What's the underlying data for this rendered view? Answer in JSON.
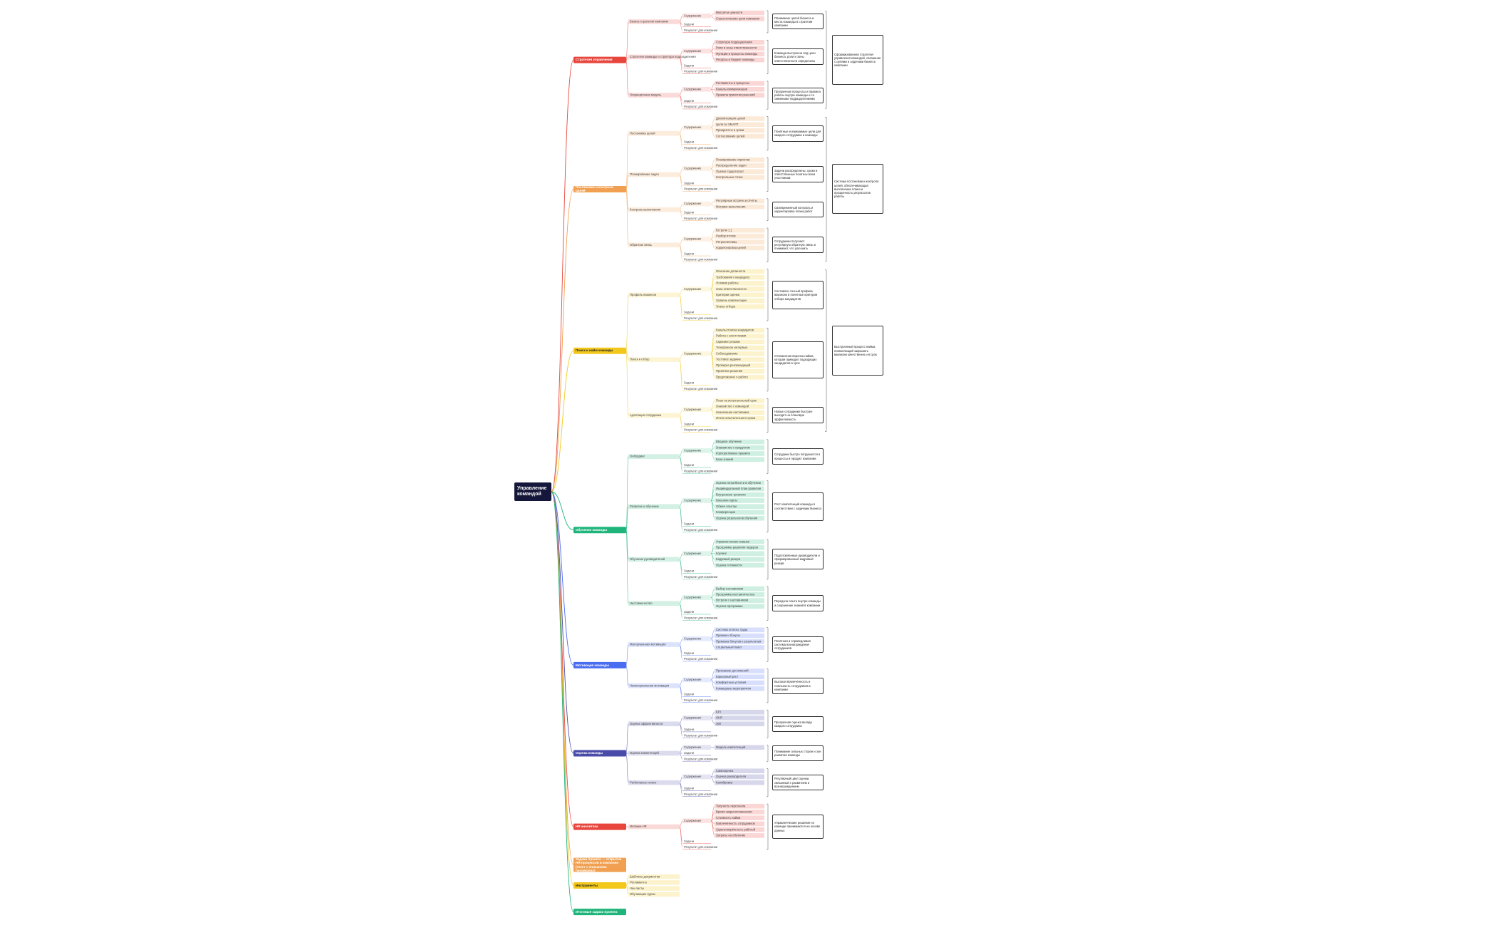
{
  "root": "Управление командой",
  "branches": [
    {
      "label": "Стратегия управления",
      "color": "#e8453c",
      "topics": [
        {
          "label": "Бизнес-стратегия компании",
          "content_label": "Содержание",
          "content": [
            "Миссия и ценности",
            "Стратегические цели компании"
          ],
          "tasks": "Задачи",
          "result": "Результат для компании",
          "note": "Понимание целей бизнеса и места команды в стратегии компании"
        },
        {
          "label": "Стратегия команды и структура подразделения",
          "content_label": "Содержание",
          "content": [
            "Структура подразделения",
            "Роли и зоны ответственности",
            "Функции и процессы команды",
            "Ресурсы и бюджет команды"
          ],
          "tasks": "Задачи",
          "result": "Результат для компании",
          "note": "Команда выстроена под цели бизнеса, роли и зоны ответственности определены"
        },
        {
          "label": "Операционная модель",
          "content_label": "Содержание",
          "content": [
            "Регламенты и процессы",
            "Каналы коммуникации",
            "Правила принятия решений"
          ],
          "tasks": "Задачи",
          "result": "Результат для компании",
          "note": "Прозрачные процессы и правила работы внутри команды и со смежными подразделениями"
        }
      ],
      "summary": "Сформированная стратегия управления командой, связанная с целями и задачами бизнеса компании"
    },
    {
      "label": "Постановка и контроль целей",
      "color": "#f0a050",
      "topics": [
        {
          "label": "Постановка целей",
          "content_label": "Содержание",
          "content": [
            "Декомпозиция целей",
            "Цели по SMART",
            "Приоритеты и сроки",
            "Согласование целей"
          ],
          "tasks": "Задачи",
          "result": "Результат для компании",
          "note": "Понятные и измеримые цели для каждого сотрудника и команды"
        },
        {
          "label": "Планирование задач",
          "content_label": "Содержание",
          "content": [
            "Планирование спринтов",
            "Распределение задач",
            "Оценка трудозатрат",
            "Контрольные точки"
          ],
          "tasks": "Задачи",
          "result": "Результат для компании",
          "note": "Задачи распределены, сроки и ответственные понятны всем участникам"
        },
        {
          "label": "Контроль выполнения",
          "content_label": "Содержание",
          "content": [
            "Регулярные встречи и отчёты",
            "Метрики выполнения"
          ],
          "tasks": "Задачи",
          "result": "Результат для компании",
          "note": "Своевременный контроль и корректировка плана работ"
        },
        {
          "label": "Обратная связь",
          "content_label": "Содержание",
          "content": [
            "Встречи 1:1",
            "Разбор итогов",
            "Ретроспективы",
            "Корректировка целей"
          ],
          "tasks": "Задачи",
          "result": "Результат для компании",
          "note": "Сотрудники получают регулярную обратную связь и понимают, что улучшить"
        }
      ],
      "summary": "Система постановки и контроля целей, обеспечивающая выполнение плана и прозрачность результатов работы"
    },
    {
      "label": "Поиск и найм команды",
      "color": "#f2c81d",
      "topics": [
        {
          "label": "Профиль вакансии",
          "content_label": "Содержание",
          "content": [
            "Описание должности",
            "Требования к кандидату",
            "Условия работы",
            "Зона ответственности",
            "Критерии оценки",
            "Уровень компенсации",
            "Этапы отбора"
          ],
          "tasks": "Задачи",
          "result": "Результат для компании",
          "note": "Составлен точный профиль вакансии и понятные критерии отбора кандидатов"
        },
        {
          "label": "Поиск и отбор",
          "content_label": "Содержание",
          "content": [
            "Каналы поиска кандидатов",
            "Работа с агентствами",
            "Скрининг резюме",
            "Телефонное интервью",
            "Собеседование",
            "Тестовое задание",
            "Проверка рекомендаций",
            "Принятие решения",
            "Предложение о работе"
          ],
          "tasks": "Задачи",
          "result": "Результат для компании",
          "note": "Отлаженная воронка найма, которая приводит подходящих кандидатов в срок"
        },
        {
          "label": "Адаптация сотрудника",
          "content_label": "Содержание",
          "content": [
            "План на испытательный срок",
            "Знакомство с командой",
            "Назначение наставника",
            "Итоги испытательного срока"
          ],
          "tasks": "Задачи",
          "result": "Результат для компании",
          "note": "Новые сотрудники быстрее выходят на плановую эффективность"
        }
      ],
      "summary": "Выстроенный процесс найма, позволяющий закрывать вакансии качественно и в срок"
    },
    {
      "label": "Обучение команды",
      "color": "#1fb57a",
      "topics": [
        {
          "label": "Онбординг",
          "content_label": "Содержание",
          "content": [
            "Вводное обучение",
            "Знакомство с продуктом",
            "Корпоративные правила",
            "База знаний"
          ],
          "tasks": "Задачи",
          "result": "Результат для компании",
          "note": "Сотрудник быстро погружается в процессы и продукт компании"
        },
        {
          "label": "Развитие и обучение",
          "content_label": "Содержание",
          "content": [
            "Оценка потребности в обучении",
            "Индивидуальный план развития",
            "Внутренние тренинги",
            "Внешние курсы",
            "Обмен опытом",
            "Конференции",
            "Оценка результатов обучения"
          ],
          "tasks": "Задачи",
          "result": "Результат для компании",
          "note": "Рост компетенций команды в соответствии с задачами бизнеса"
        },
        {
          "label": "Обучение руководителей",
          "content_label": "Содержание",
          "content": [
            "Управленческие навыки",
            "Программы развития лидеров",
            "Коучинг",
            "Кадровый резерв",
            "Оценка готовности"
          ],
          "tasks": "Задачи",
          "result": "Результат для компании",
          "note": "Подготовленные руководители и сформированный кадровый резерв"
        },
        {
          "label": "Наставничество",
          "content_label": "Содержание",
          "content": [
            "Выбор наставников",
            "Программа наставничества",
            "Встречи с наставником",
            "Оценка программы"
          ],
          "tasks": "Задачи",
          "result": "Результат для компании",
          "note": "Передача опыта внутри команды и сохранение знаний в компании"
        }
      ]
    },
    {
      "label": "Мотивация команды",
      "color": "#4a6cf0",
      "topics": [
        {
          "label": "Материальная мотивация",
          "content_label": "Содержание",
          "content": [
            "Система оплаты труда",
            "Премии и бонусы",
            "Привязка бонусов к результатам",
            "Социальный пакет"
          ],
          "tasks": "Задачи",
          "result": "Результат для компании",
          "note": "Понятная и справедливая система вознаграждения сотрудников"
        },
        {
          "label": "Нематериальная мотивация",
          "content_label": "Содержание",
          "content": [
            "Признание достижений",
            "Карьерный рост",
            "Комфортные условия",
            "Командные мероприятия"
          ],
          "tasks": "Задачи",
          "result": "Результат для компании",
          "note": "Высокая вовлечённость и лояльность сотрудников к компании"
        }
      ]
    },
    {
      "label": "Оценка команды",
      "color": "#4a4aa8",
      "topics": [
        {
          "label": "Оценка эффективности",
          "content_label": "Содержание",
          "content": [
            "KPI",
            "OKR",
            "360"
          ],
          "tasks": "Задачи",
          "result": "Результат для компании",
          "note": "Прозрачная оценка вклада каждого сотрудника"
        },
        {
          "label": "Оценка компетенций",
          "content_label": "Содержание",
          "content": [
            "Модель компетенций"
          ],
          "tasks": "Задачи",
          "result": "Результат для компании",
          "note": "Понимание сильных сторон и зон развития команды"
        },
        {
          "label": "Performance review",
          "content_label": "Содержание",
          "content": [
            "Самооценка",
            "Оценка руководителя",
            "Калибровка"
          ],
          "tasks": "Задачи",
          "result": "Результат для компании",
          "note": "Регулярный цикл оценки, связанный с развитием и вознаграждением"
        }
      ]
    },
    {
      "label": "HR аналитика",
      "color": "#e8453c",
      "topics": [
        {
          "label": "Метрики HR",
          "content_label": "Содержание",
          "content": [
            "Текучесть персонала",
            "Время закрытия вакансии",
            "Стоимость найма",
            "Вовлечённость сотрудников",
            "Удовлетворённость работой",
            "Затраты на обучение"
          ],
          "tasks": "Задачи",
          "result": "Результат для компании",
          "note": "Управленческие решения по команде принимаются на основе данных"
        }
      ]
    },
    {
      "label": "Задачи проекта — открытие HR-процессов в компании (текст с описанием процедуры)",
      "color": "#f0a050",
      "topics": []
    },
    {
      "label": "Инструменты",
      "color": "#f2c81d",
      "items": [
        "Шаблоны документов",
        "Регламенты",
        "Чек-листы",
        "Обучающие курсы"
      ]
    },
    {
      "label": "Итоговые задачи проекта",
      "color": "#1fb57a",
      "topics": []
    }
  ]
}
